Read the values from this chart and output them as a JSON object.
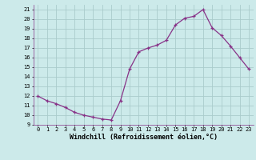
{
  "x": [
    0,
    1,
    2,
    3,
    4,
    5,
    6,
    7,
    8,
    9,
    10,
    11,
    12,
    13,
    14,
    15,
    16,
    17,
    18,
    19,
    20,
    21,
    22,
    23
  ],
  "y": [
    12,
    11.5,
    11.2,
    10.8,
    10.3,
    10.0,
    9.8,
    9.6,
    9.5,
    11.5,
    14.8,
    16.6,
    17.0,
    17.3,
    17.8,
    19.4,
    20.1,
    20.3,
    21.0,
    19.1,
    18.3,
    17.2,
    16.0,
    14.8
  ],
  "xlim": [
    -0.5,
    23.5
  ],
  "ylim": [
    9,
    21.5
  ],
  "yticks": [
    9,
    10,
    11,
    12,
    13,
    14,
    15,
    16,
    17,
    18,
    19,
    20,
    21
  ],
  "xticks": [
    0,
    1,
    2,
    3,
    4,
    5,
    6,
    7,
    8,
    9,
    10,
    11,
    12,
    13,
    14,
    15,
    16,
    17,
    18,
    19,
    20,
    21,
    22,
    23
  ],
  "xlabel": "Windchill (Refroidissement éolien,°C)",
  "line_color": "#883388",
  "marker": "+",
  "bg_color": "#cceaea",
  "grid_color": "#aacccc",
  "tick_fontsize": 5.0,
  "xlabel_fontsize": 6.0
}
